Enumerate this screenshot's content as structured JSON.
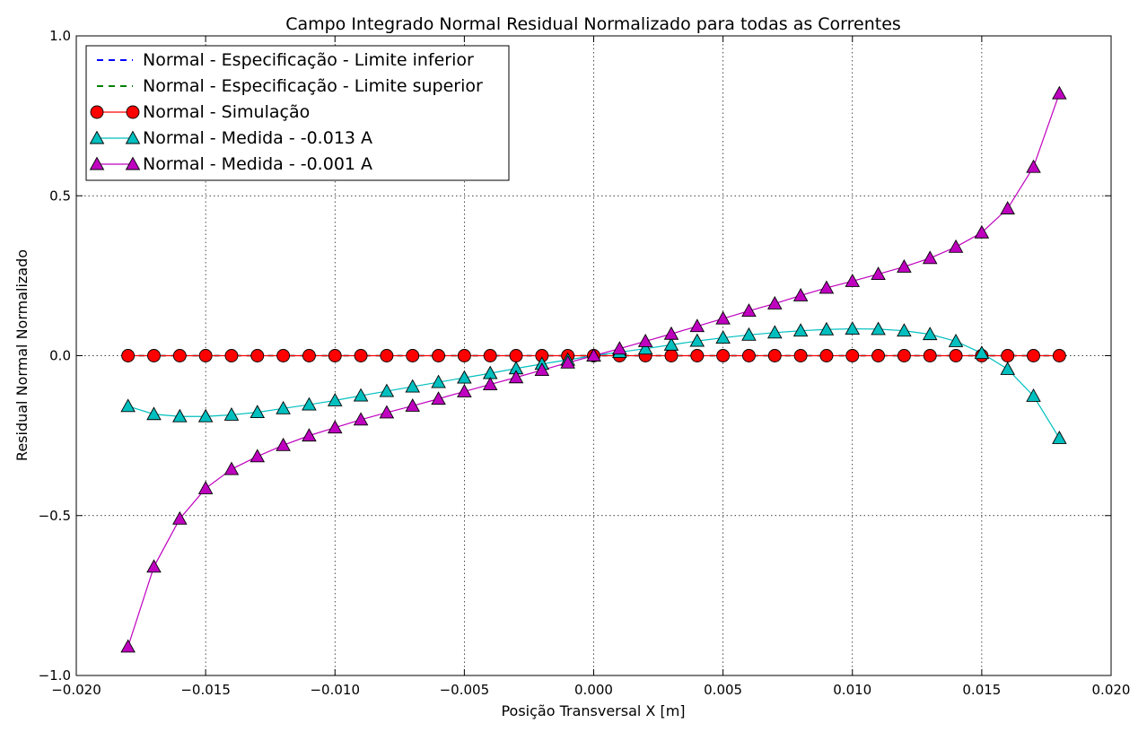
{
  "chart_data": {
    "type": "line",
    "title": "Campo Integrado Normal Residual Normalizado para todas as Correntes",
    "xlabel": "Posição Transversal X [m]",
    "ylabel": "Residual Normal Normalizado",
    "xlim": [
      -0.02,
      0.02
    ],
    "ylim": [
      -1.0,
      1.0
    ],
    "grid": true,
    "legend_position": "top-left",
    "xticks": [
      -0.02,
      -0.015,
      -0.01,
      -0.005,
      0.0,
      0.005,
      0.01,
      0.015,
      0.02
    ],
    "xtick_labels": [
      "−0.020",
      "−0.015",
      "−0.010",
      "−0.005",
      "0.000",
      "0.005",
      "0.010",
      "0.015",
      "0.020"
    ],
    "yticks": [
      -1.0,
      -0.5,
      0.0,
      0.5,
      1.0
    ],
    "ytick_labels": [
      "−1.0",
      "−0.5",
      "0.0",
      "0.5",
      "1.0"
    ],
    "x": [
      -0.018,
      -0.017,
      -0.016,
      -0.015,
      -0.014,
      -0.013,
      -0.012,
      -0.011,
      -0.01,
      -0.009,
      -0.008,
      -0.007,
      -0.006,
      -0.005,
      -0.004,
      -0.003,
      -0.002,
      -0.001,
      0.0,
      0.001,
      0.002,
      0.003,
      0.004,
      0.005,
      0.006,
      0.007,
      0.008,
      0.009,
      0.01,
      0.011,
      0.012,
      0.013,
      0.014,
      0.015,
      0.016,
      0.017,
      0.018
    ],
    "series": [
      {
        "name": "Normal - Especificação - Limite inferior",
        "style": "dashed",
        "color": "#0000ff",
        "marker": "none",
        "values": [
          0,
          0,
          0,
          0,
          0,
          0,
          0,
          0,
          0,
          0,
          0,
          0,
          0,
          0,
          0,
          0,
          0,
          0,
          0,
          0,
          0,
          0,
          0,
          0,
          0,
          0,
          0,
          0,
          0,
          0,
          0,
          0,
          0,
          0,
          0,
          0,
          0
        ]
      },
      {
        "name": "Normal - Especificação - Limite superior",
        "style": "dashed",
        "color": "#008000",
        "marker": "none",
        "values": [
          0,
          0,
          0,
          0,
          0,
          0,
          0,
          0,
          0,
          0,
          0,
          0,
          0,
          0,
          0,
          0,
          0,
          0,
          0,
          0,
          0,
          0,
          0,
          0,
          0,
          0,
          0,
          0,
          0,
          0,
          0,
          0,
          0,
          0,
          0,
          0,
          0
        ]
      },
      {
        "name": "Normal - Simulação",
        "style": "solid",
        "color": "#ff0000",
        "marker": "circle",
        "values": [
          0,
          0,
          0,
          0,
          0,
          0,
          0,
          0,
          0,
          0,
          0,
          0,
          0,
          0,
          0,
          0,
          0,
          0,
          0,
          0,
          0,
          0,
          0,
          0,
          0,
          0,
          0,
          0,
          0,
          0,
          0,
          0,
          0,
          0,
          0,
          0,
          0
        ]
      },
      {
        "name": "Normal - Medida - -0.013 A",
        "style": "solid",
        "color": "#00bfbf",
        "marker": "triangle",
        "values": [
          -0.158,
          -0.183,
          -0.19,
          -0.19,
          -0.185,
          -0.177,
          -0.165,
          -0.153,
          -0.14,
          -0.125,
          -0.111,
          -0.097,
          -0.083,
          -0.069,
          -0.055,
          -0.04,
          -0.026,
          -0.013,
          0.0,
          0.011,
          0.022,
          0.034,
          0.046,
          0.056,
          0.065,
          0.072,
          0.078,
          0.082,
          0.084,
          0.083,
          0.078,
          0.067,
          0.045,
          0.008,
          -0.042,
          -0.126,
          -0.258
        ]
      },
      {
        "name": "Normal - Medida - -0.001 A",
        "style": "solid",
        "color": "#bf00bf",
        "marker": "triangle",
        "values": [
          -0.91,
          -0.66,
          -0.51,
          -0.415,
          -0.355,
          -0.315,
          -0.28,
          -0.25,
          -0.225,
          -0.2,
          -0.178,
          -0.157,
          -0.135,
          -0.112,
          -0.09,
          -0.068,
          -0.045,
          -0.022,
          0.0,
          0.022,
          0.045,
          0.068,
          0.092,
          0.116,
          0.14,
          0.163,
          0.188,
          0.212,
          0.233,
          0.255,
          0.278,
          0.305,
          0.34,
          0.385,
          0.46,
          0.59,
          0.82
        ]
      }
    ]
  }
}
